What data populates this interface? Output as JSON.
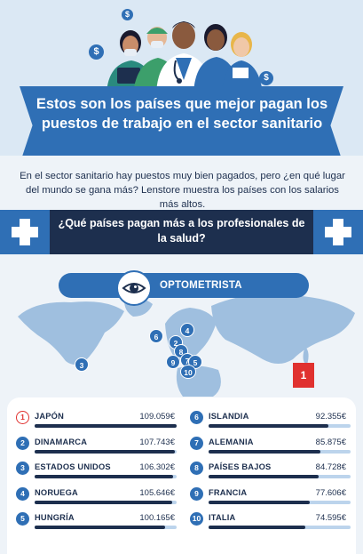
{
  "header": {
    "title": "Estos son los países que mejor pagan los puestos de trabajo en el sector sanitario"
  },
  "intro": {
    "text": "En el sector sanitario hay puestos muy bien pagados, pero ¿en qué lugar del mundo se gana más? Lenstore muestra los países con los salarios más altos."
  },
  "question": {
    "text": "¿Qué países pagan más a los profesionales de la salud?"
  },
  "map": {
    "profession": "OPTOMETRISTA",
    "pins": [
      "1",
      "2",
      "3",
      "4",
      "5",
      "6",
      "7",
      "8",
      "9",
      "10"
    ]
  },
  "ranking": {
    "max_value": 109059,
    "items": [
      {
        "rank": "1",
        "country": "JAPÓN",
        "salary": "109.059€",
        "value": 109059
      },
      {
        "rank": "2",
        "country": "DINAMARCA",
        "salary": "107.743€",
        "value": 107743
      },
      {
        "rank": "3",
        "country": "ESTADOS UNIDOS",
        "salary": "106.302€",
        "value": 106302
      },
      {
        "rank": "4",
        "country": "NORUEGA",
        "salary": "105.646€",
        "value": 105646
      },
      {
        "rank": "5",
        "country": "HUNGRÍA",
        "salary": "100.165€",
        "value": 100165
      },
      {
        "rank": "6",
        "country": "ISLANDIA",
        "salary": "92.355€",
        "value": 92355
      },
      {
        "rank": "7",
        "country": "ALEMANIA",
        "salary": "85.875€",
        "value": 85875
      },
      {
        "rank": "8",
        "country": "PAÍSES BAJOS",
        "salary": "84.728€",
        "value": 84728
      },
      {
        "rank": "9",
        "country": "FRANCIA",
        "salary": "77.606€",
        "value": 77606
      },
      {
        "rank": "10",
        "country": "ITALIA",
        "salary": "74.595€",
        "value": 74595
      }
    ]
  },
  "icons": {
    "dollar": "$",
    "plus": "plus-icon",
    "eye": "eye-icon"
  },
  "colors": {
    "primary_blue": "#2f6fb5",
    "navy": "#1d2f4e",
    "highlight_red": "#e0312f",
    "light_bg": "#dbe8f4"
  }
}
